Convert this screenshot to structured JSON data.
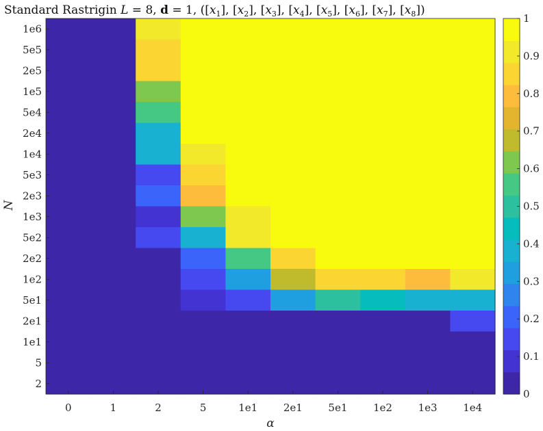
{
  "chart_data": {
    "type": "heatmap",
    "title": "Standard Rastrigin L = 8, d = 1, ([x1], [x2], [x3], [x4], [x5], [x6], [x7], [x8])",
    "title_parts": {
      "prefix": "Standard Rastrigin ",
      "L_symbol": "L",
      "L_value": " = 8, ",
      "d_symbol": "d",
      "d_value": " = 1, (",
      "vars": [
        "x1",
        "x2",
        "x3",
        "x4",
        "x5",
        "x6",
        "x7",
        "x8"
      ],
      "suffix": ")"
    },
    "xlabel": "α",
    "ylabel": "N",
    "x_categories": [
      "0",
      "1",
      "2",
      "5",
      "1e1",
      "2e1",
      "5e1",
      "1e2",
      "1e3",
      "1e4"
    ],
    "y_categories": [
      "1e6",
      "5e5",
      "2e5",
      "1e5",
      "5e4",
      "2e4",
      "1e4",
      "5e3",
      "2e3",
      "1e3",
      "5e2",
      "2e2",
      "1e2",
      "5e1",
      "2e1",
      "1e1",
      "5",
      "2"
    ],
    "values": [
      [
        0,
        0,
        0.95,
        1,
        1,
        1,
        1,
        1,
        1,
        1
      ],
      [
        0,
        0,
        0.85,
        1,
        1,
        1,
        1,
        1,
        1,
        1
      ],
      [
        0,
        0,
        0.85,
        1,
        1,
        1,
        1,
        1,
        1,
        1
      ],
      [
        0,
        0,
        0.6,
        1,
        1,
        1,
        1,
        1,
        1,
        1
      ],
      [
        0,
        0,
        0.55,
        1,
        1,
        1,
        1,
        1,
        1,
        1
      ],
      [
        0,
        0,
        0.4,
        1,
        1,
        1,
        1,
        1,
        1,
        1
      ],
      [
        0,
        0,
        0.4,
        0.95,
        1,
        1,
        1,
        1,
        1,
        1
      ],
      [
        0,
        0,
        0.15,
        0.85,
        1,
        1,
        1,
        1,
        1,
        1
      ],
      [
        0,
        0,
        0.2,
        0.8,
        1,
        1,
        1,
        1,
        1,
        1
      ],
      [
        0,
        0,
        0.05,
        0.6,
        0.95,
        1,
        1,
        1,
        1,
        1
      ],
      [
        0,
        0,
        0.15,
        0.4,
        0.95,
        1,
        1,
        1,
        1,
        1
      ],
      [
        0,
        0,
        0,
        0.2,
        0.55,
        0.9,
        1,
        1,
        1,
        1
      ],
      [
        0,
        0,
        0,
        0.15,
        0.3,
        0.7,
        0.85,
        0.85,
        0.8,
        0.95
      ],
      [
        0,
        0,
        0,
        0.05,
        0.1,
        0.3,
        0.5,
        0.45,
        0.4,
        0.4
      ],
      [
        0,
        0,
        0,
        0,
        0,
        0,
        0,
        0,
        0,
        0.1
      ],
      [
        0,
        0,
        0,
        0,
        0,
        0,
        0,
        0,
        0,
        0
      ],
      [
        0,
        0,
        0,
        0,
        0,
        0,
        0,
        0,
        0,
        0
      ],
      [
        0,
        0,
        0,
        0,
        0,
        0,
        0,
        0,
        0,
        0
      ]
    ],
    "colorbar": {
      "min": 0,
      "max": 1,
      "ticks": [
        "0",
        "0.1",
        "0.2",
        "0.3",
        "0.4",
        "0.5",
        "0.6",
        "0.7",
        "0.8",
        "0.9",
        "1"
      ],
      "colors": [
        "#3e26a8",
        "#4433d3",
        "#4749f0",
        "#3b64fb",
        "#2f84ee",
        "#1f9ee0",
        "#18b1d1",
        "#07bcbd",
        "#2cc09f",
        "#45c883",
        "#7ec84f",
        "#bfbb2c",
        "#e3b42e",
        "#fdbc3c",
        "#fbd632",
        "#f3e92b",
        "#f9fb0e"
      ]
    }
  }
}
